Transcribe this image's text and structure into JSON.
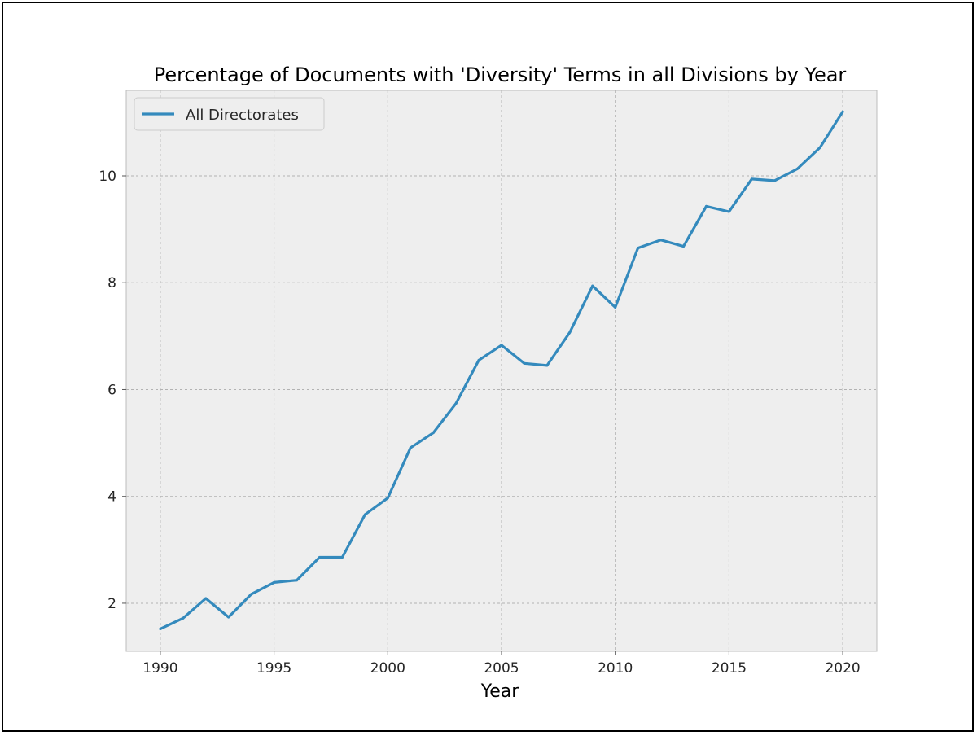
{
  "chart_data": {
    "type": "line",
    "title": "Percentage of Documents with 'Diversity' Terms in all Divisions by Year",
    "xlabel": "Year",
    "ylabel": "",
    "xlim": [
      1988.5,
      2021.5
    ],
    "ylim": [
      1.1,
      11.6
    ],
    "x_ticks": [
      1990,
      1995,
      2000,
      2005,
      2010,
      2015,
      2020
    ],
    "y_ticks": [
      2,
      4,
      6,
      8,
      10
    ],
    "grid": true,
    "legend_position": "top-left",
    "colors": {
      "line": "#348ABD",
      "plot_background": "#EEEEEE",
      "grid": "#B2B2B2",
      "spine": "#BCBCBC"
    },
    "series": [
      {
        "name": "All Directorates",
        "x": [
          1990,
          1991,
          1992,
          1993,
          1994,
          1995,
          1996,
          1997,
          1998,
          1999,
          2000,
          2001,
          2002,
          2003,
          2004,
          2005,
          2006,
          2007,
          2008,
          2009,
          2010,
          2011,
          2012,
          2013,
          2014,
          2015,
          2016,
          2017,
          2018,
          2019,
          2020
        ],
        "values": [
          1.52,
          1.72,
          2.09,
          1.74,
          2.17,
          2.39,
          2.43,
          2.86,
          2.86,
          3.66,
          3.97,
          4.91,
          5.19,
          5.74,
          6.55,
          6.83,
          6.49,
          6.45,
          7.07,
          7.94,
          7.54,
          8.65,
          8.8,
          8.68,
          9.43,
          9.33,
          9.94,
          9.91,
          10.13,
          10.53,
          11.2
        ]
      }
    ]
  }
}
